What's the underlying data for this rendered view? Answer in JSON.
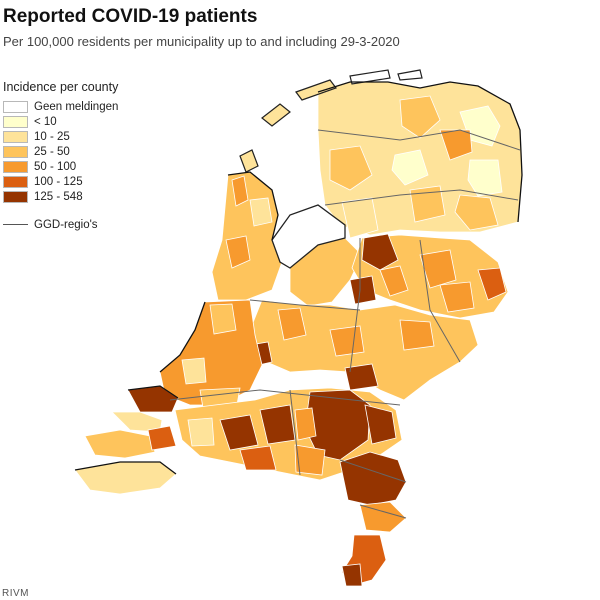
{
  "header": {
    "title": "Reported COVID-19 patients",
    "subtitle": "Per 100,000 residents per municipality up to and including 29-3-2020"
  },
  "legend": {
    "title": "Incidence per county",
    "items": [
      {
        "label": "Geen meldingen",
        "color": "#ffffff"
      },
      {
        "label": "< 10",
        "color": "#ffffcc"
      },
      {
        "label": "10 - 25",
        "color": "#fee39a"
      },
      {
        "label": "25 - 50",
        "color": "#fec45c"
      },
      {
        "label": "50 - 100",
        "color": "#f79a2e"
      },
      {
        "label": "100 - 125",
        "color": "#db5f11"
      },
      {
        "label": "125 - 548",
        "color": "#953400"
      }
    ],
    "boundary_label": "GGD-regio's",
    "boundary_color": "#555555"
  },
  "source": "RIVM"
}
